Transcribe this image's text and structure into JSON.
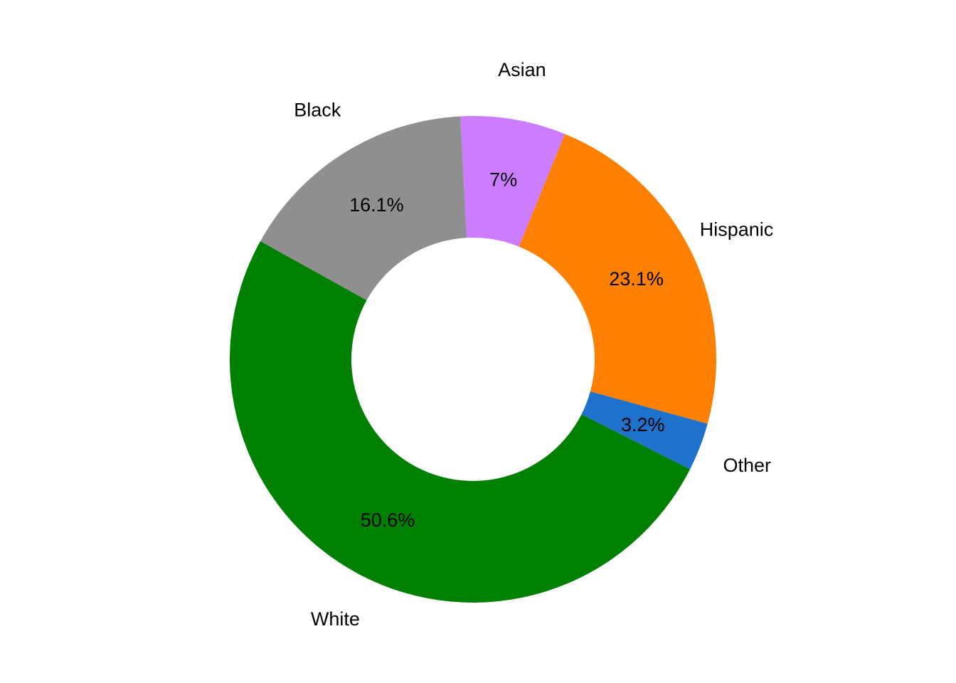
{
  "chart_data": {
    "type": "pie",
    "donut": true,
    "start_angle_deg": -3,
    "direction": "clockwise",
    "categories": [
      "Asian",
      "Hispanic",
      "Other",
      "White",
      "Black"
    ],
    "values": [
      7,
      23.1,
      3.2,
      50.6,
      16.1
    ],
    "value_labels": [
      "7%",
      "23.1%",
      "3.2%",
      "50.6%",
      "16.1%"
    ],
    "colors": [
      "#CC7DFF",
      "#FF8000",
      "#1F72CC",
      "#008000",
      "#8F8F8F"
    ],
    "legend": "none"
  }
}
